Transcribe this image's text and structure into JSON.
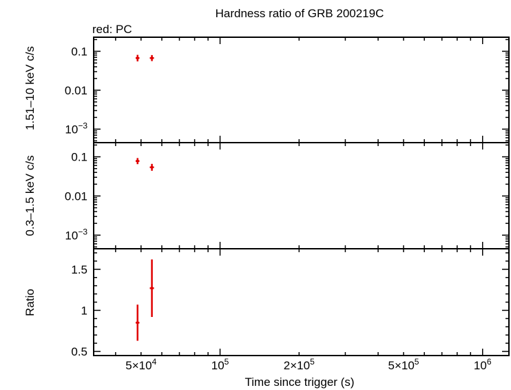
{
  "chart_data": {
    "type": "scatter",
    "title": "Hardness ratio of GRB 200219C",
    "legend": "red: PC",
    "xlabel": "Time since trigger (s)",
    "xscale": "log",
    "xlim": [
      33000,
      1260000
    ],
    "xticks": [
      {
        "value": 50000,
        "label": "5×10",
        "exp": "4"
      },
      {
        "value": 100000,
        "label": "10",
        "exp": "5"
      },
      {
        "value": 200000,
        "label": "2×10",
        "exp": "5"
      },
      {
        "value": 500000,
        "label": "5×10",
        "exp": "5"
      },
      {
        "value": 1000000,
        "label": "10",
        "exp": "6"
      }
    ],
    "panels": [
      {
        "id": "hard",
        "ylabel": "1.51–10 keV c/s",
        "yscale": "log",
        "ylim": [
          0.00045,
          0.23
        ],
        "yticks": [
          {
            "value": 0.1,
            "label": "0.1",
            "exp": ""
          },
          {
            "value": 0.01,
            "label": "0.01",
            "exp": ""
          },
          {
            "value": 0.001,
            "label": "10",
            "exp": "−3"
          }
        ],
        "points": [
          {
            "x": 48500,
            "xlo": 47700,
            "xhi": 49300,
            "y": 0.067,
            "ylo": 0.055,
            "yhi": 0.081
          },
          {
            "x": 55000,
            "xlo": 54000,
            "xhi": 56000,
            "y": 0.067,
            "ylo": 0.056,
            "yhi": 0.08
          }
        ]
      },
      {
        "id": "soft",
        "ylabel": "0.3–1.5 keV c/s",
        "yscale": "log",
        "ylim": [
          0.00045,
          0.23
        ],
        "yticks": [
          {
            "value": 0.1,
            "label": "0.1",
            "exp": ""
          },
          {
            "value": 0.01,
            "label": "0.01",
            "exp": ""
          },
          {
            "value": 0.001,
            "label": "10",
            "exp": "−3"
          }
        ],
        "points": [
          {
            "x": 48500,
            "xlo": 47700,
            "xhi": 49300,
            "y": 0.078,
            "ylo": 0.065,
            "yhi": 0.093
          },
          {
            "x": 55000,
            "xlo": 54000,
            "xhi": 56000,
            "y": 0.054,
            "ylo": 0.044,
            "yhi": 0.066
          }
        ]
      },
      {
        "id": "ratio",
        "ylabel": "Ratio",
        "yscale": "linear",
        "ylim": [
          0.45,
          1.75
        ],
        "yticks": [
          {
            "value": 0.5,
            "label": "0.5",
            "exp": ""
          },
          {
            "value": 1,
            "label": "1",
            "exp": ""
          },
          {
            "value": 1.5,
            "label": "1.5",
            "exp": ""
          }
        ],
        "points": [
          {
            "x": 48500,
            "xlo": 47700,
            "xhi": 49300,
            "y": 0.85,
            "ylo": 0.63,
            "yhi": 1.07
          },
          {
            "x": 55000,
            "xlo": 54000,
            "xhi": 56000,
            "y": 1.27,
            "ylo": 0.92,
            "yhi": 1.62
          }
        ]
      }
    ]
  }
}
